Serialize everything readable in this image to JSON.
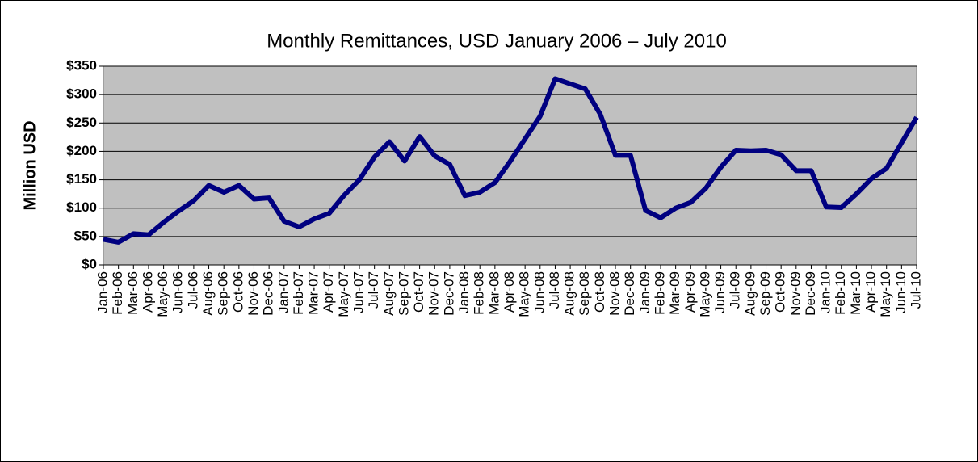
{
  "chart_data": {
    "type": "line",
    "title": "Monthly Remittances, USD January 2006 – July 2010",
    "y_label": "Million USD",
    "categories": [
      "Jan-06",
      "Feb-06",
      "Mar-06",
      "Apr-06",
      "May-06",
      "Jun-06",
      "Jul-06",
      "Aug-06",
      "Sep-06",
      "Oct-06",
      "Nov-06",
      "Dec-06",
      "Jan-07",
      "Feb-07",
      "Mar-07",
      "Apr-07",
      "May-07",
      "Jun-07",
      "Jul-07",
      "Aug-07",
      "Sep-07",
      "Oct-07",
      "Nov-07",
      "Dec-07",
      "Jan-08",
      "Feb-08",
      "Mar-08",
      "Apr-08",
      "May-08",
      "Jun-08",
      "Jul-08",
      "Aug-08",
      "Sep-08",
      "Oct-08",
      "Nov-08",
      "Dec-08",
      "Jan-09",
      "Feb-09",
      "Mar-09",
      "Apr-09",
      "May-09",
      "Jun-09",
      "Jul-09",
      "Aug-09",
      "Sep-09",
      "Oct-09",
      "Nov-09",
      "Dec-09",
      "Jan-10",
      "Feb-10",
      "Mar-10",
      "Apr-10",
      "May-10",
      "Jun-10",
      "Jul-10"
    ],
    "values": [
      45,
      40,
      55,
      53,
      75,
      95,
      113,
      140,
      128,
      140,
      116,
      118,
      77,
      67,
      81,
      91,
      123,
      150,
      190,
      217,
      183,
      226,
      192,
      177,
      122,
      128,
      145,
      182,
      222,
      262,
      328,
      319,
      310,
      265,
      193,
      193,
      96,
      83,
      100,
      110,
      135,
      172,
      202,
      201,
      202,
      194,
      166,
      166,
      102,
      101,
      125,
      152,
      170,
      215,
      260
    ],
    "color": "#000080",
    "plot_background": "#c0c0c0",
    "ylim": [
      0,
      350
    ],
    "yticks": [
      {
        "value": 0,
        "label": "$0"
      },
      {
        "value": 50,
        "label": "$50"
      },
      {
        "value": 100,
        "label": "$100"
      },
      {
        "value": 150,
        "label": "$150"
      },
      {
        "value": 200,
        "label": "$200"
      },
      {
        "value": 250,
        "label": "$250"
      },
      {
        "value": 300,
        "label": "$300"
      },
      {
        "value": 350,
        "label": "$350"
      }
    ],
    "grid": true
  }
}
